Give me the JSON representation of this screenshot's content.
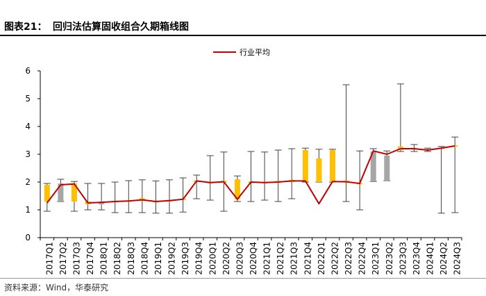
{
  "header": {
    "figure_label": "图表21：",
    "figure_title": "回归法估算固收组合久期箱线图"
  },
  "footer": {
    "source": "资料来源：Wind，华泰研究"
  },
  "colors": {
    "line": "#c00000",
    "box_gold": "#ffc000",
    "box_gray": "#a6a6a6",
    "whisker": "#404040",
    "axis": "#000000"
  },
  "chart_data": {
    "type": "box",
    "title": "",
    "xlabel": "",
    "ylabel": "",
    "ylim": [
      0,
      6
    ],
    "yticks": [
      0,
      1,
      2,
      3,
      4,
      5,
      6
    ],
    "grid": false,
    "legend_position": "top-center",
    "categories": [
      "2017Q1",
      "2017Q2",
      "2017Q3",
      "2017Q4",
      "2018Q1",
      "2018Q2",
      "2018Q3",
      "2018Q4",
      "2019Q1",
      "2019Q2",
      "2019Q3",
      "2019Q4",
      "2020Q1",
      "2020Q2",
      "2020Q3",
      "2020Q4",
      "2021Q1",
      "2021Q2",
      "2021Q3",
      "2021Q4",
      "2022Q1",
      "2022Q2",
      "2022Q3",
      "2022Q4",
      "2023Q1",
      "2023Q2",
      "2023Q3",
      "2023Q4",
      "2024Q1",
      "2024Q2",
      "2024Q3"
    ],
    "series": [
      {
        "name": "行业平均",
        "type": "line",
        "values": [
          1.25,
          1.9,
          1.93,
          1.25,
          1.27,
          1.3,
          1.32,
          1.36,
          1.3,
          1.33,
          1.38,
          2.04,
          1.98,
          2.01,
          1.38,
          2.0,
          1.98,
          2.0,
          2.04,
          2.04,
          1.22,
          2.02,
          2.01,
          1.95,
          3.12,
          3.0,
          3.2,
          3.2,
          3.15,
          3.22,
          3.3
        ]
      }
    ],
    "boxes": [
      {
        "min": 0.95,
        "q1": 1.3,
        "q3": 1.9,
        "max": 1.95,
        "color": "gold"
      },
      {
        "min": 1.3,
        "q1": 1.3,
        "q3": 1.95,
        "max": 2.1,
        "color": "gray"
      },
      {
        "min": 0.95,
        "q1": 1.3,
        "q3": 1.95,
        "max": 2.02,
        "color": "gold"
      },
      {
        "min": 1.0,
        "q1": 1.2,
        "q3": 1.3,
        "max": 1.95,
        "color": "gold"
      },
      {
        "min": 1.0,
        "q1": 1.2,
        "q3": 1.3,
        "max": 1.95,
        "color": "gray"
      },
      {
        "min": 0.9,
        "q1": 1.28,
        "q3": 1.32,
        "max": 2.0,
        "color": "gold"
      },
      {
        "min": 0.9,
        "q1": 1.3,
        "q3": 1.34,
        "max": 2.05,
        "color": "gold"
      },
      {
        "min": 0.9,
        "q1": 1.32,
        "q3": 1.42,
        "max": 2.08,
        "color": "gold"
      },
      {
        "min": 0.88,
        "q1": 1.28,
        "q3": 1.32,
        "max": 2.04,
        "color": "gold"
      },
      {
        "min": 0.88,
        "q1": 1.3,
        "q3": 1.36,
        "max": 2.08,
        "color": "gold"
      },
      {
        "min": 0.92,
        "q1": 1.35,
        "q3": 1.4,
        "max": 2.15,
        "color": "gold"
      },
      {
        "min": 1.4,
        "q1": 2.0,
        "q3": 2.06,
        "max": 2.25,
        "color": "gold"
      },
      {
        "min": 1.35,
        "q1": 1.96,
        "q3": 2.0,
        "max": 2.95,
        "color": "gold"
      },
      {
        "min": 0.95,
        "q1": 1.98,
        "q3": 2.05,
        "max": 3.08,
        "color": "gold"
      },
      {
        "min": 1.3,
        "q1": 1.38,
        "q3": 2.1,
        "max": 2.22,
        "color": "gold"
      },
      {
        "min": 1.3,
        "q1": 1.97,
        "q3": 2.02,
        "max": 3.1,
        "color": "gold"
      },
      {
        "min": 1.35,
        "q1": 1.96,
        "q3": 2.0,
        "max": 3.08,
        "color": "gold"
      },
      {
        "min": 1.3,
        "q1": 1.97,
        "q3": 2.04,
        "max": 3.15,
        "color": "gold"
      },
      {
        "min": 1.4,
        "q1": 2.0,
        "q3": 2.08,
        "max": 3.2,
        "color": "gold"
      },
      {
        "min": 2.0,
        "q1": 2.02,
        "q3": 3.15,
        "max": 3.22,
        "color": "gold"
      },
      {
        "min": 2.0,
        "q1": 2.0,
        "q3": 2.85,
        "max": 3.18,
        "color": "gold"
      },
      {
        "min": 2.0,
        "q1": 2.0,
        "q3": 3.15,
        "max": 3.18,
        "color": "gold"
      },
      {
        "min": 1.3,
        "q1": 2.0,
        "q3": 2.06,
        "max": 5.5,
        "color": "gold"
      },
      {
        "min": 1.0,
        "q1": 1.95,
        "q3": 1.97,
        "max": 3.12,
        "color": "gold"
      },
      {
        "min": 2.02,
        "q1": 2.02,
        "q3": 3.1,
        "max": 3.2,
        "color": "gray"
      },
      {
        "min": 2.05,
        "q1": 2.05,
        "q3": 2.95,
        "max": 3.12,
        "color": "gray"
      },
      {
        "min": 3.1,
        "q1": 3.15,
        "q3": 3.28,
        "max": 5.53,
        "color": "gold"
      },
      {
        "min": 3.1,
        "q1": 3.17,
        "q3": 3.23,
        "max": 3.35,
        "color": "gold"
      },
      {
        "min": 3.1,
        "q1": 3.15,
        "q3": 3.18,
        "max": 3.22,
        "color": "gold"
      },
      {
        "min": 0.88,
        "q1": 3.2,
        "q3": 3.24,
        "max": 3.28,
        "color": "gold"
      },
      {
        "min": 0.9,
        "q1": 3.28,
        "q3": 3.32,
        "max": 3.62,
        "color": "gold"
      }
    ]
  }
}
